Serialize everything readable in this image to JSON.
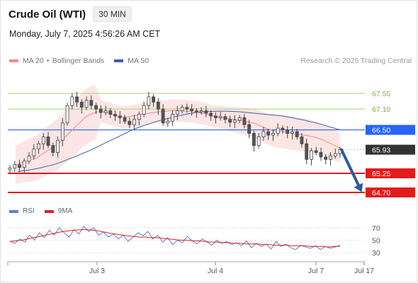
{
  "header": {
    "title": "Crude Oil (WTI)",
    "timeframe": "30 MIN"
  },
  "datetime": "Monday, July 7, 2025 4:56:26 AM CET",
  "legend": {
    "ma20": {
      "label": "MA 20 + Bollinger Bands",
      "color": "#f08a8a"
    },
    "ma50": {
      "label": "MA 50",
      "color": "#3a5ea8"
    }
  },
  "credit": "Research © 2025 Trading Central",
  "rsi_legend": {
    "rsi": {
      "label": "RSI",
      "color": "#5b7fd6"
    },
    "ma9": {
      "label": "9MA",
      "color": "#e02020"
    }
  },
  "chart_data": {
    "type": "candlestick",
    "x_tick_labels": [
      "Jul 3",
      "Jul 4",
      "Jul 7",
      "Jul 17"
    ],
    "price_range": [
      64.5,
      67.9
    ],
    "levels": [
      {
        "label": "67.55",
        "value": 67.55,
        "style": "green-line"
      },
      {
        "label": "67.10",
        "value": 67.1,
        "style": "green-line"
      },
      {
        "label": "66.50",
        "value": 66.5,
        "style": "blue-box"
      },
      {
        "label": "65.93",
        "value": 65.93,
        "style": "current-price"
      },
      {
        "label": "65.25",
        "value": 65.25,
        "style": "red-box"
      },
      {
        "label": "64.70",
        "value": 64.7,
        "style": "red-box"
      }
    ],
    "close_series": [
      65.4,
      65.5,
      65.42,
      65.6,
      65.75,
      65.95,
      66.1,
      66.3,
      66.05,
      65.85,
      66.2,
      66.7,
      67.2,
      67.45,
      67.3,
      67.15,
      67.35,
      67.2,
      67.1,
      67.0,
      67.05,
      66.95,
      66.9,
      66.85,
      66.75,
      66.65,
      66.8,
      66.95,
      67.2,
      67.45,
      67.3,
      67.1,
      66.7,
      66.75,
      66.95,
      67.05,
      67.15,
      67.1,
      67.05,
      67.02,
      67.05,
      66.98,
      66.9,
      66.85,
      66.88,
      66.8,
      66.72,
      66.78,
      66.85,
      66.65,
      66.4,
      66.05,
      66.3,
      66.45,
      66.35,
      66.4,
      66.55,
      66.5,
      66.4,
      66.45,
      66.3,
      66.1,
      65.65,
      65.9,
      65.85,
      65.72,
      65.65,
      65.75,
      65.82,
      65.93
    ],
    "ma20_series": [
      65.5,
      65.55,
      65.6,
      65.65,
      65.7,
      65.8,
      65.9,
      66.0,
      66.1,
      66.25,
      66.4,
      66.55,
      66.7,
      66.85,
      66.95,
      67.0,
      67.03,
      67.0,
      66.95,
      66.9,
      66.88,
      66.87,
      66.9,
      66.93,
      66.95,
      66.98,
      67.0,
      67.02,
      67.03,
      67.05,
      67.06,
      67.05,
      67.04,
      67.03,
      67.0,
      66.98,
      66.95,
      66.9,
      66.88,
      66.85,
      66.82,
      66.8,
      66.77,
      66.75,
      66.72,
      66.68,
      66.62,
      66.55,
      66.5,
      66.45,
      66.45,
      66.43,
      66.4,
      66.38,
      66.35,
      66.33,
      66.3,
      66.25,
      66.2,
      66.12,
      66.05,
      65.98
    ],
    "ma50_series": [
      65.3,
      65.33,
      65.36,
      65.4,
      65.45,
      65.5,
      65.57,
      65.65,
      65.73,
      65.82,
      65.9,
      66.0,
      66.1,
      66.2,
      66.3,
      66.4,
      66.5,
      66.58,
      66.65,
      66.72,
      66.78,
      66.83,
      66.88,
      66.93,
      66.97,
      67.0,
      67.02,
      67.03,
      67.04,
      67.04,
      67.03,
      67.02,
      67.0,
      66.98,
      66.96,
      66.94,
      66.92,
      66.9,
      66.86,
      66.82,
      66.78,
      66.73,
      66.68,
      66.62,
      66.56,
      66.5
    ],
    "forecast": {
      "from": 65.93,
      "to": 64.7,
      "direction": "down"
    },
    "rsi": {
      "y_tick_labels": [
        "70",
        "50",
        "30"
      ],
      "range": [
        20,
        80
      ],
      "rsi_series": [
        48,
        45,
        52,
        47,
        58,
        50,
        62,
        54,
        66,
        58,
        70,
        62,
        55,
        67,
        60,
        72,
        64,
        70,
        58,
        63,
        55,
        60,
        52,
        58,
        48,
        55,
        62,
        57,
        64,
        52,
        58,
        47,
        54,
        43,
        50,
        46,
        56,
        49,
        44,
        52,
        47,
        42,
        50,
        45,
        48,
        43,
        46,
        41,
        49,
        38,
        45,
        40,
        44,
        36,
        48,
        40,
        44,
        38,
        35,
        42,
        39,
        37,
        41,
        35,
        40,
        37,
        39,
        42
      ],
      "ma9_series": [
        48,
        49,
        50,
        52,
        54,
        56,
        58,
        60,
        62,
        64,
        65,
        66,
        67,
        67,
        66,
        65,
        63,
        61,
        60,
        58,
        57,
        56,
        55,
        55,
        54,
        54,
        53,
        52,
        51,
        50,
        50,
        49,
        49,
        48,
        47,
        47,
        46,
        46,
        45,
        45,
        44,
        44,
        44,
        43,
        43,
        42,
        42,
        42,
        41,
        41,
        41,
        40,
        40,
        40,
        39,
        40,
        40
      ]
    }
  }
}
